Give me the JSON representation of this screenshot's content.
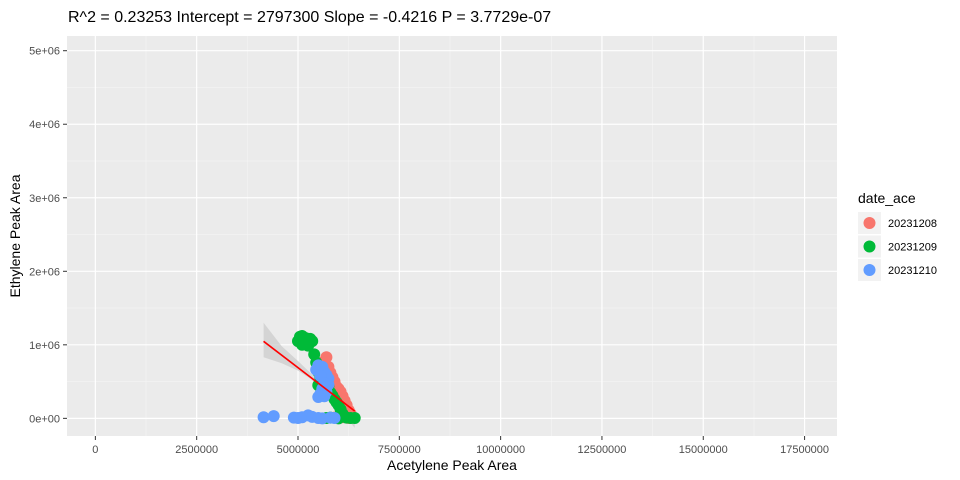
{
  "chart_data": {
    "type": "scatter",
    "title": "R^2 =  0.23253 Intercept = 2797300  Slope = -0.4216  P = 3.7729e-07",
    "xlabel": "Acetylene Peak Area",
    "ylabel": "Ethylene Peak Area",
    "xlim": [
      -700000,
      18300000
    ],
    "ylim": [
      -240000,
      5200000
    ],
    "x_ticks": [
      0,
      2500000,
      5000000,
      7500000,
      10000000,
      12500000,
      15000000,
      17500000
    ],
    "x_tick_labels": [
      "0",
      "2500000",
      "5000000",
      "7500000",
      "10000000",
      "12500000",
      "15000000",
      "17500000"
    ],
    "y_ticks": [
      0,
      1000000,
      2000000,
      3000000,
      4000000,
      5000000
    ],
    "y_tick_labels": [
      "0e+00",
      "1e+06",
      "2e+06",
      "3e+06",
      "4e+06",
      "5e+06"
    ],
    "grid": true,
    "background": "#ebebeb",
    "legend": {
      "title": "date_ace",
      "placement": "right"
    },
    "series": [
      {
        "name": "20231208",
        "color": "#F8766D",
        "points": [
          [
            5700000,
            830000
          ],
          [
            5600000,
            760000
          ],
          [
            5750000,
            700000
          ],
          [
            5800000,
            620000
          ],
          [
            5850000,
            560000
          ],
          [
            5900000,
            500000
          ],
          [
            5950000,
            430000
          ],
          [
            6000000,
            400000
          ],
          [
            6050000,
            360000
          ],
          [
            6100000,
            300000
          ],
          [
            6150000,
            240000
          ],
          [
            6200000,
            180000
          ],
          [
            6250000,
            110000
          ],
          [
            6300000,
            60000
          ],
          [
            6350000,
            10000
          ],
          [
            5900000,
            10000
          ],
          [
            6100000,
            15000
          ],
          [
            6250000,
            5000
          ]
        ]
      },
      {
        "name": "20231209",
        "color": "#00BA38",
        "points": [
          [
            5000000,
            1050000
          ],
          [
            5050000,
            1110000
          ],
          [
            5100000,
            1120000
          ],
          [
            5150000,
            1080000
          ],
          [
            5200000,
            1090000
          ],
          [
            5250000,
            1060000
          ],
          [
            5300000,
            1080000
          ],
          [
            5350000,
            1050000
          ],
          [
            5100000,
            1000000
          ],
          [
            5250000,
            990000
          ],
          [
            5400000,
            870000
          ],
          [
            5450000,
            760000
          ],
          [
            5500000,
            630000
          ],
          [
            5550000,
            560000
          ],
          [
            5600000,
            500000
          ],
          [
            5500000,
            450000
          ],
          [
            5650000,
            420000
          ],
          [
            5700000,
            380000
          ],
          [
            5750000,
            440000
          ],
          [
            5800000,
            350000
          ],
          [
            5850000,
            310000
          ],
          [
            5900000,
            260000
          ],
          [
            5950000,
            220000
          ],
          [
            6000000,
            180000
          ],
          [
            6050000,
            120000
          ],
          [
            6100000,
            60000
          ],
          [
            6200000,
            10000
          ],
          [
            6300000,
            5000
          ],
          [
            5800000,
            10000
          ],
          [
            6000000,
            0
          ],
          [
            6400000,
            5000
          ],
          [
            5700000,
            5000
          ]
        ]
      },
      {
        "name": "20231210",
        "color": "#619CFF",
        "points": [
          [
            4150000,
            15000
          ],
          [
            4400000,
            30000
          ],
          [
            4900000,
            10000
          ],
          [
            5000000,
            5000
          ],
          [
            5100000,
            15000
          ],
          [
            5250000,
            40000
          ],
          [
            5350000,
            20000
          ],
          [
            5500000,
            5000
          ],
          [
            5600000,
            0
          ],
          [
            5800000,
            10000
          ],
          [
            5900000,
            5000
          ],
          [
            5450000,
            660000
          ],
          [
            5500000,
            720000
          ],
          [
            5600000,
            700000
          ],
          [
            5650000,
            630000
          ],
          [
            5700000,
            590000
          ],
          [
            5750000,
            540000
          ],
          [
            5550000,
            580000
          ],
          [
            5650000,
            480000
          ],
          [
            5600000,
            400000
          ],
          [
            5700000,
            360000
          ],
          [
            5550000,
            330000
          ],
          [
            5500000,
            290000
          ],
          [
            5650000,
            300000
          ],
          [
            5750000,
            460000
          ]
        ]
      }
    ],
    "regression": {
      "color": "#FF0000",
      "ribbon_color": "#cccccc",
      "intercept": 2797300,
      "slope": -0.4216,
      "x_range": [
        4150000,
        6400000
      ],
      "ci": [
        [
          4150000,
          830000,
          1300000
        ],
        [
          4600000,
          750000,
          980000
        ],
        [
          5000000,
          650000,
          780000
        ],
        [
          5300000,
          540000,
          620000
        ],
        [
          5600000,
          390000,
          460000
        ],
        [
          5900000,
          210000,
          320000
        ],
        [
          6150000,
          40000,
          210000
        ],
        [
          6400000,
          -130000,
          100000
        ]
      ]
    }
  }
}
